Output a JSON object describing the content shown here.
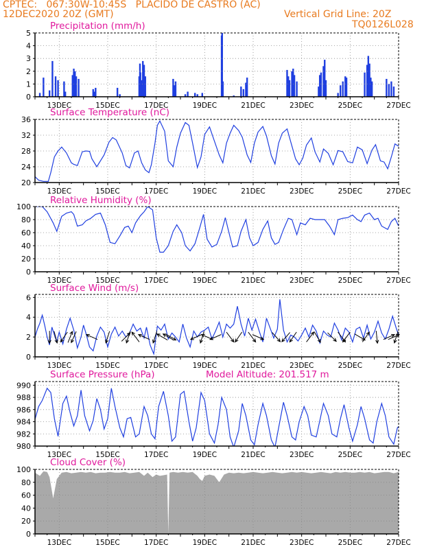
{
  "header": {
    "line1_left": "CPTEC:   067:30W-10:45S   PLACIDO DE CASTRO (AC)",
    "line2_left": "12DEC2020 20Z (GMT)",
    "line2_right": "Vertical Grid Line: 20Z",
    "line3_right": "TQ0126L028",
    "altitude_label": "Model Altitude: 201.517 m"
  },
  "colors": {
    "header": "#e87a1e",
    "title": "#e0189c",
    "line": "#1f3fe0",
    "bar": "#1f3fe0",
    "cloud": "#a9a9a9",
    "arrow": "#000000"
  },
  "x_ticks": [
    "13DEC",
    "15DEC",
    "17DEC",
    "19DEC",
    "21DEC",
    "23DEC",
    "25DEC",
    "27DEC"
  ],
  "chart_data": [
    {
      "type": "bar",
      "title": "Precipitation (mm/h)",
      "yticks": [
        "0",
        "1",
        "2",
        "3",
        "4",
        "5"
      ],
      "ylim": [
        0,
        5
      ],
      "x": [
        12.2,
        12.35,
        12.6,
        12.72,
        12.85,
        12.95,
        13.2,
        13.25,
        13.55,
        13.6,
        13.65,
        13.7,
        13.8,
        14.4,
        14.45,
        14.5,
        15.4,
        15.5,
        16.3,
        16.33,
        16.35,
        16.4,
        16.45,
        16.5,
        16.55,
        17.7,
        17.75,
        17.8,
        18.2,
        18.3,
        18.6,
        18.7,
        18.9,
        19.7,
        19.72,
        19.75,
        20.2,
        20.5,
        20.6,
        20.7,
        20.75,
        22.4,
        22.45,
        22.5,
        22.6,
        22.65,
        22.7,
        22.8,
        23.7,
        23.75,
        23.8,
        23.9,
        23.95,
        24.0,
        24.5,
        24.6,
        24.7,
        24.8,
        24.85,
        25.6,
        25.7,
        25.75,
        25.8,
        25.85,
        25.9,
        26.5,
        26.6,
        26.7,
        26.8
      ],
      "values": [
        0.3,
        1.5,
        0.5,
        2.8,
        1.6,
        1.3,
        1.2,
        0.4,
        1.7,
        2.2,
        2.0,
        1.6,
        1.4,
        0.6,
        0.4,
        0.7,
        0.7,
        0.2,
        1.6,
        2.6,
        1.9,
        1.3,
        2.8,
        2.5,
        1.6,
        1.4,
        0.9,
        1.2,
        0.2,
        0.4,
        0.3,
        0.2,
        0.3,
        4.8,
        5.0,
        1.2,
        0.1,
        0.8,
        0.6,
        1.1,
        1.5,
        2.1,
        1.6,
        1.3,
        2.0,
        2.2,
        1.7,
        1.2,
        0.8,
        1.7,
        1.9,
        2.4,
        2.9,
        1.3,
        0.3,
        0.9,
        1.2,
        1.6,
        1.5,
        1.9,
        2.5,
        3.2,
        2.6,
        1.5,
        1.2,
        1.4,
        1.0,
        1.2,
        0.8
      ]
    },
    {
      "type": "line",
      "title": "Surface Temperature (nC)",
      "yticks": [
        "20",
        "24",
        "28",
        "32",
        "36"
      ],
      "ylim": [
        20,
        36
      ],
      "x": [
        12.0,
        12.15,
        12.35,
        12.55,
        12.65,
        12.8,
        12.95,
        13.1,
        13.3,
        13.5,
        13.6,
        13.75,
        13.95,
        14.1,
        14.25,
        14.35,
        14.55,
        14.85,
        15.05,
        15.2,
        15.35,
        15.6,
        15.75,
        15.9,
        16.1,
        16.25,
        16.4,
        16.55,
        16.7,
        16.8,
        16.95,
        17.05,
        17.15,
        17.35,
        17.5,
        17.7,
        17.85,
        18.0,
        18.2,
        18.35,
        18.5,
        18.7,
        18.85,
        19.0,
        19.2,
        19.4,
        19.6,
        19.75,
        19.9,
        20.05,
        20.2,
        20.4,
        20.55,
        20.75,
        20.9,
        21.05,
        21.2,
        21.4,
        21.55,
        21.75,
        21.9,
        22.05,
        22.2,
        22.4,
        22.55,
        22.75,
        22.9,
        23.05,
        23.2,
        23.4,
        23.55,
        23.75,
        23.9,
        24.1,
        24.3,
        24.5,
        24.7,
        24.9,
        25.1,
        25.3,
        25.5,
        25.7,
        25.9,
        26.05,
        26.25,
        26.4,
        26.55,
        26.7,
        26.85,
        27.0
      ],
      "values": [
        21.5,
        20.6,
        20.3,
        20.3,
        22.5,
        26.5,
        28.0,
        29.0,
        27.5,
        25.0,
        24.6,
        24.3,
        27.8,
        28.0,
        27.9,
        26.0,
        24.0,
        27.0,
        30.2,
        31.4,
        30.8,
        27.5,
        24.3,
        23.7,
        27.5,
        28.0,
        25.0,
        23.2,
        22.5,
        24.5,
        30.0,
        34.5,
        35.6,
        33.0,
        25.5,
        24.0,
        29.0,
        32.5,
        35.2,
        34.5,
        30.0,
        23.8,
        26.5,
        32.2,
        34.1,
        30.5,
        27.0,
        25.0,
        30.0,
        32.5,
        34.5,
        33.2,
        31.5,
        27.0,
        25.1,
        30.0,
        32.8,
        34.2,
        31.8,
        26.8,
        24.7,
        30.0,
        32.5,
        33.6,
        30.3,
        26.0,
        24.5,
        26.2,
        29.5,
        31.3,
        27.8,
        25.2,
        28.5,
        27.4,
        24.5,
        28.1,
        27.8,
        25.3,
        25.0,
        29.0,
        28.3,
        24.8,
        28.2,
        29.6,
        25.5,
        25.2,
        23.5,
        26.5,
        29.8,
        29.2
      ]
    },
    {
      "type": "line",
      "title": "Relative Humidity (%)",
      "yticks": [
        "0",
        "20",
        "40",
        "60",
        "80",
        "100"
      ],
      "ylim": [
        0,
        100
      ],
      "x": [
        12.0,
        12.3,
        12.5,
        12.75,
        12.9,
        13.1,
        13.3,
        13.5,
        13.6,
        13.75,
        13.95,
        14.1,
        14.3,
        14.5,
        14.7,
        14.9,
        15.1,
        15.3,
        15.5,
        15.7,
        15.85,
        16.0,
        16.15,
        16.35,
        16.5,
        16.65,
        16.85,
        17.0,
        17.15,
        17.3,
        17.5,
        17.7,
        17.85,
        18.05,
        18.2,
        18.4,
        18.6,
        18.8,
        18.95,
        19.1,
        19.3,
        19.5,
        19.7,
        19.85,
        20.0,
        20.15,
        20.35,
        20.5,
        20.7,
        20.85,
        21.0,
        21.2,
        21.4,
        21.6,
        21.75,
        21.9,
        22.05,
        22.25,
        22.45,
        22.6,
        22.8,
        22.95,
        23.15,
        23.35,
        23.55,
        23.75,
        23.95,
        24.15,
        24.35,
        24.5,
        24.7,
        24.9,
        25.1,
        25.3,
        25.45,
        25.6,
        25.8,
        26.0,
        26.15,
        26.3,
        26.55,
        26.7,
        26.85,
        27.0
      ],
      "values": [
        100,
        100,
        92,
        75,
        62,
        85,
        90,
        92,
        88,
        70,
        72,
        78,
        82,
        88,
        90,
        72,
        45,
        43,
        55,
        68,
        70,
        60,
        75,
        86,
        92,
        100,
        95,
        52,
        30,
        30,
        40,
        62,
        72,
        60,
        40,
        32,
        43,
        68,
        88,
        50,
        38,
        42,
        62,
        83,
        60,
        38,
        40,
        62,
        80,
        52,
        40,
        45,
        65,
        78,
        52,
        42,
        45,
        65,
        82,
        80,
        57,
        75,
        72,
        82,
        80,
        80,
        80,
        70,
        57,
        80,
        82,
        83,
        87,
        80,
        77,
        87,
        90,
        80,
        82,
        70,
        65,
        77,
        82,
        70
      ]
    },
    {
      "type": "line",
      "title": "Surface Wind (m/s)",
      "yticks": [
        "0",
        "2",
        "4",
        "6"
      ],
      "ylim": [
        0,
        6.3
      ],
      "x": [
        12.0,
        12.1,
        12.2,
        12.3,
        12.4,
        12.5,
        12.6,
        12.7,
        12.8,
        12.9,
        13.0,
        13.15,
        13.3,
        13.45,
        13.6,
        13.75,
        13.9,
        14.0,
        14.1,
        14.25,
        14.4,
        14.55,
        14.7,
        14.85,
        15.0,
        15.15,
        15.3,
        15.45,
        15.6,
        15.75,
        15.9,
        16.05,
        16.2,
        16.35,
        16.5,
        16.6,
        16.75,
        16.9,
        17.05,
        17.2,
        17.35,
        17.5,
        17.65,
        17.8,
        17.95,
        18.1,
        18.25,
        18.4,
        18.55,
        18.7,
        18.85,
        19.0,
        19.15,
        19.3,
        19.45,
        19.6,
        19.75,
        19.9,
        20.05,
        20.2,
        20.35,
        20.5,
        20.65,
        20.8,
        20.95,
        21.1,
        21.25,
        21.4,
        21.55,
        21.7,
        21.85,
        22.0,
        22.1,
        22.25,
        22.4,
        22.55,
        22.7,
        22.85,
        23.0,
        23.15,
        23.3,
        23.45,
        23.6,
        23.75,
        23.9,
        24.05,
        24.2,
        24.35,
        24.5,
        24.65,
        24.8,
        24.95,
        25.1,
        25.25,
        25.4,
        25.55,
        25.7,
        25.85,
        26.0,
        26.15,
        26.3,
        26.45,
        26.6,
        26.75,
        26.9,
        27.0
      ],
      "values": [
        2.0,
        2.8,
        3.4,
        4.2,
        3.2,
        2.0,
        1.2,
        3.0,
        2.2,
        1.5,
        2.5,
        1.3,
        2.8,
        3.9,
        2.7,
        0.9,
        2.0,
        3.2,
        2.4,
        1.0,
        0.6,
        2.1,
        3.0,
        2.5,
        1.0,
        2.3,
        3.0,
        2.1,
        2.6,
        2.0,
        2.4,
        3.3,
        2.6,
        2.9,
        1.9,
        3.0,
        1.2,
        0.3,
        3.1,
        2.7,
        3.3,
        1.8,
        2.4,
        2.0,
        1.5,
        3.3,
        1.9,
        1.0,
        2.6,
        2.0,
        2.5,
        2.7,
        3.0,
        1.8,
        2.6,
        3.5,
        2.0,
        3.3,
        2.9,
        3.3,
        5.1,
        3.3,
        2.1,
        3.9,
        2.7,
        3.8,
        2.6,
        1.5,
        3.9,
        2.9,
        1.9,
        2.8,
        5.8,
        2.7,
        1.5,
        2.2,
        2.0,
        1.6,
        2.2,
        2.9,
        2.0,
        3.2,
        2.6,
        1.4,
        2.6,
        2.2,
        2.0,
        3.4,
        2.7,
        1.7,
        2.9,
        2.5,
        1.5,
        2.8,
        3.0,
        1.9,
        3.2,
        1.8,
        2.5,
        3.6,
        2.4,
        1.8,
        2.8,
        4.1,
        2.9,
        2.2
      ]
    },
    {
      "type": "line",
      "title": "Surface Pressure (hPa)",
      "yticks": [
        "980",
        "982",
        "984",
        "986",
        "988",
        "990"
      ],
      "ylim": [
        980,
        990.6
      ],
      "x": [
        12.0,
        12.15,
        12.3,
        12.5,
        12.65,
        12.8,
        12.95,
        13.15,
        13.3,
        13.45,
        13.6,
        13.75,
        13.9,
        14.05,
        14.25,
        14.4,
        14.55,
        14.7,
        14.85,
        15.0,
        15.15,
        15.3,
        15.5,
        15.65,
        15.8,
        15.95,
        16.15,
        16.3,
        16.5,
        16.65,
        16.8,
        16.95,
        17.1,
        17.3,
        17.5,
        17.65,
        17.8,
        18.0,
        18.15,
        18.35,
        18.5,
        18.65,
        18.85,
        19.0,
        19.2,
        19.4,
        19.55,
        19.7,
        19.9,
        20.05,
        20.2,
        20.4,
        20.55,
        20.7,
        20.9,
        21.05,
        21.2,
        21.4,
        21.55,
        21.75,
        21.9,
        22.05,
        22.25,
        22.4,
        22.6,
        22.75,
        22.9,
        23.1,
        23.25,
        23.4,
        23.6,
        23.75,
        23.9,
        24.1,
        24.25,
        24.45,
        24.6,
        24.75,
        24.95,
        25.1,
        25.3,
        25.45,
        25.6,
        25.8,
        25.95,
        26.1,
        26.3,
        26.45,
        26.6,
        26.8,
        26.95,
        27.0
      ],
      "values": [
        984.4,
        986.5,
        987.5,
        989.5,
        988.8,
        984.5,
        981.6,
        987.0,
        988.2,
        985.5,
        983.3,
        985.0,
        989.2,
        985.0,
        982.5,
        984.2,
        987.8,
        986.0,
        982.8,
        984.5,
        989.5,
        986.5,
        983.0,
        981.5,
        984.5,
        984.7,
        981.5,
        982.0,
        986.5,
        985.0,
        982.0,
        981.2,
        986.5,
        989.0,
        985.0,
        980.8,
        981.5,
        988.5,
        989.0,
        984.0,
        980.8,
        983.0,
        988.8,
        987.5,
        982.0,
        980.5,
        983.5,
        988.0,
        986.0,
        981.5,
        979.8,
        982.5,
        987.0,
        985.0,
        981.0,
        980.2,
        983.5,
        987.0,
        985.0,
        981.0,
        979.8,
        983.0,
        987.2,
        985.0,
        981.5,
        981.0,
        984.0,
        986.5,
        985.0,
        981.8,
        981.5,
        984.2,
        987.0,
        985.0,
        982.0,
        981.5,
        984.5,
        986.8,
        983.0,
        980.8,
        983.5,
        986.5,
        984.5,
        981.0,
        980.5,
        984.0,
        987.0,
        985.0,
        981.5,
        980.3,
        983.0,
        983.2
      ]
    },
    {
      "type": "area",
      "title": "Cloud Cover (%)",
      "yticks": [
        "0",
        "20",
        "40",
        "60",
        "80",
        "100"
      ],
      "ylim": [
        0,
        100
      ],
      "x": [
        12.0,
        12.2,
        12.35,
        12.5,
        12.6,
        12.75,
        12.9,
        13.1,
        13.3,
        13.5,
        13.7,
        13.9,
        14.1,
        14.3,
        14.5,
        14.7,
        14.9,
        15.1,
        15.3,
        15.5,
        15.7,
        15.9,
        16.1,
        16.3,
        16.5,
        16.65,
        16.85,
        17.0,
        17.15,
        17.3,
        17.45,
        17.5,
        17.55,
        17.7,
        17.9,
        18.1,
        18.3,
        18.5,
        18.7,
        18.8,
        18.9,
        19.0,
        19.2,
        19.4,
        19.6,
        19.8,
        20.0,
        20.2,
        20.4,
        20.6,
        20.8,
        21.0,
        21.2,
        21.4,
        21.6,
        21.8,
        22.0,
        22.2,
        22.4,
        22.6,
        22.8,
        23.0,
        23.2,
        23.4,
        23.6,
        23.8,
        24.0,
        24.2,
        24.4,
        24.6,
        24.8,
        25.0,
        25.2,
        25.4,
        25.6,
        25.8,
        26.0,
        26.2,
        26.4,
        26.6,
        26.8,
        27.0
      ],
      "values": [
        95,
        90,
        97,
        96,
        88,
        55,
        85,
        95,
        96,
        94,
        95,
        96,
        95,
        96,
        94,
        95,
        95,
        96,
        95,
        95,
        96,
        94,
        95,
        96,
        90,
        95,
        88,
        92,
        90,
        91,
        92,
        0,
        95,
        96,
        95,
        96,
        95,
        96,
        90,
        85,
        82,
        90,
        92,
        90,
        80,
        92,
        95,
        94,
        95,
        94,
        95,
        96,
        95,
        94,
        95,
        96,
        95,
        94,
        95,
        96,
        95,
        96,
        95,
        94,
        95,
        96,
        95,
        94,
        96,
        95,
        96,
        95,
        95,
        96,
        95,
        96,
        94,
        95,
        96,
        96,
        94,
        96
      ]
    }
  ],
  "wind_arrows": [
    {
      "t": 12.6,
      "u": 0.0,
      "v": -1.0
    },
    {
      "t": 12.85,
      "u": 0.25,
      "v": -0.95
    },
    {
      "t": 13.2,
      "u": -0.55,
      "v": -0.8
    },
    {
      "t": 13.45,
      "u": 0.35,
      "v": 0.9
    },
    {
      "t": 13.6,
      "u": -0.4,
      "v": -0.9
    },
    {
      "t": 14.35,
      "u": -0.9,
      "v": 0.4
    },
    {
      "t": 15.0,
      "u": -0.3,
      "v": -0.95
    },
    {
      "t": 15.75,
      "u": 0.7,
      "v": 0.7
    },
    {
      "t": 15.85,
      "u": -0.3,
      "v": -0.95
    },
    {
      "t": 16.15,
      "u": -0.6,
      "v": 0.8
    },
    {
      "t": 16.5,
      "u": -0.9,
      "v": 0.4
    },
    {
      "t": 16.95,
      "u": -0.3,
      "v": -0.95
    },
    {
      "t": 17.25,
      "u": -0.85,
      "v": 0.5
    },
    {
      "t": 17.5,
      "u": -0.85,
      "v": 0.5
    },
    {
      "t": 17.6,
      "u": 0.85,
      "v": -0.5
    },
    {
      "t": 18.65,
      "u": -0.9,
      "v": -0.4
    },
    {
      "t": 18.9,
      "u": -0.3,
      "v": -0.95
    },
    {
      "t": 19.1,
      "u": -0.9,
      "v": 0.4
    },
    {
      "t": 19.45,
      "u": -0.9,
      "v": -0.4
    },
    {
      "t": 20.05,
      "u": 0.6,
      "v": -0.8
    },
    {
      "t": 20.4,
      "u": -0.55,
      "v": -0.8
    },
    {
      "t": 20.95,
      "u": 0.6,
      "v": -0.8
    },
    {
      "t": 21.2,
      "u": 0.9,
      "v": -0.4
    },
    {
      "t": 21.95,
      "u": 0.65,
      "v": -0.75
    },
    {
      "t": 22.35,
      "u": -0.65,
      "v": -0.75
    },
    {
      "t": 22.65,
      "u": -0.55,
      "v": -0.8
    },
    {
      "t": 23.35,
      "u": 0.6,
      "v": 0.8
    },
    {
      "t": 23.65,
      "u": 0.5,
      "v": -0.85
    },
    {
      "t": 24.25,
      "u": 0.7,
      "v": -0.7
    },
    {
      "t": 24.65,
      "u": 0.6,
      "v": -0.8
    },
    {
      "t": 24.85,
      "u": -0.6,
      "v": -0.8
    },
    {
      "t": 25.4,
      "u": 0.85,
      "v": -0.5
    },
    {
      "t": 25.65,
      "u": 0.55,
      "v": 0.8
    },
    {
      "t": 26.1,
      "u": 0.1,
      "v": -1.0
    },
    {
      "t": 26.6,
      "u": 0.9,
      "v": 0.4
    },
    {
      "t": 26.8,
      "u": 0.9,
      "v": 0.4
    },
    {
      "t": 26.9,
      "u": -0.3,
      "v": -0.95
    }
  ]
}
